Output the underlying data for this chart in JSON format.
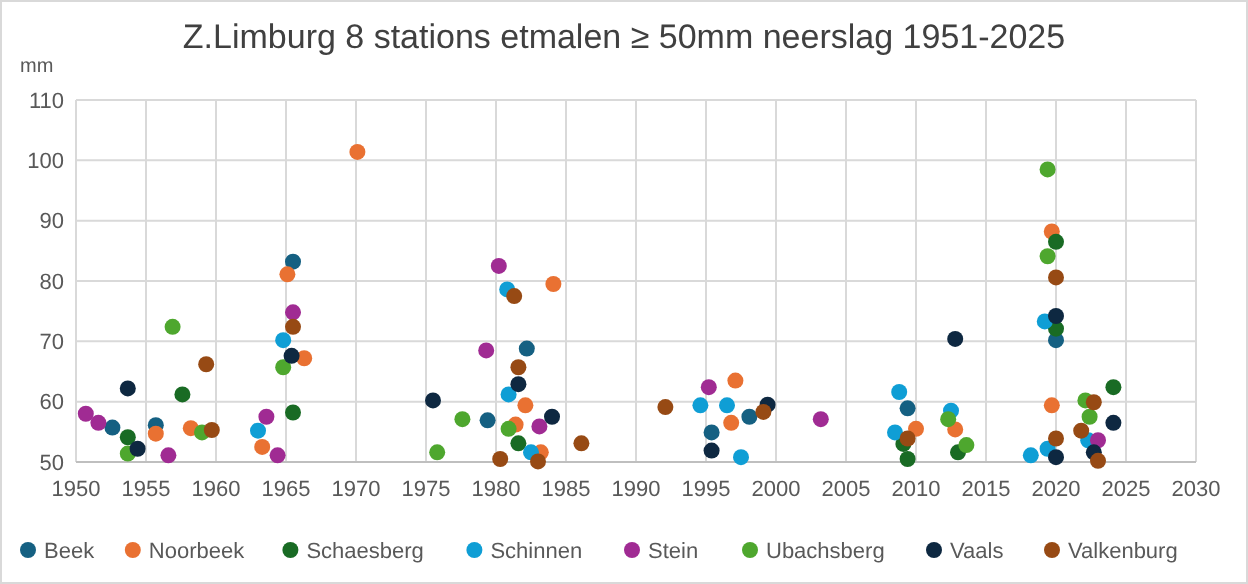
{
  "chart_data": {
    "type": "scatter",
    "title": "Z.Limburg 8 stations etmalen ≥ 50mm neerslag 1951-2025",
    "ylabel": "mm",
    "xlim": [
      1950,
      2030
    ],
    "xticks": [
      1950,
      1955,
      1960,
      1965,
      1970,
      1975,
      1980,
      1985,
      1990,
      1995,
      2000,
      2005,
      2010,
      2015,
      2020,
      2025,
      2030
    ],
    "ylim": [
      50,
      110
    ],
    "yticks": [
      50,
      60,
      70,
      80,
      90,
      100,
      110
    ],
    "grid": true,
    "legend": "bottom",
    "marker": "circle",
    "series": [
      {
        "name": "Beek",
        "color": "#156082",
        "x": [
          1952.6,
          1955.7,
          1965.5,
          1979.4,
          1982.2,
          1995.4,
          1998.1,
          2009.4,
          2020.0
        ],
        "values": [
          55.7,
          56.1,
          83.2,
          56.9,
          68.8,
          54.9,
          57.5,
          58.9,
          70.2
        ]
      },
      {
        "name": "Noorbeek",
        "color": "#e97132",
        "x": [
          1955.7,
          1958.2,
          1963.3,
          1965.1,
          1966.3,
          1970.1,
          1981.4,
          1982.1,
          1983.2,
          1984.1,
          1996.8,
          1997.1,
          2010.0,
          2012.8,
          2019.7,
          2019.7
        ],
        "values": [
          54.7,
          55.6,
          52.5,
          81.1,
          67.2,
          101.4,
          56.2,
          59.4,
          51.6,
          79.5,
          56.5,
          63.5,
          55.5,
          55.4,
          88.2,
          59.4
        ]
      },
      {
        "name": "Schaesberg",
        "color": "#196b24",
        "x": [
          1953.7,
          1957.6,
          1965.5,
          1981.6,
          2009.1,
          2009.4,
          2013.0,
          2020.0,
          2020.0,
          2024.1
        ],
        "values": [
          54.1,
          61.2,
          58.2,
          53.1,
          53.0,
          50.5,
          51.6,
          86.5,
          72.1,
          62.4
        ]
      },
      {
        "name": "Schinnen",
        "color": "#0f9ed5",
        "x": [
          1963.0,
          1964.8,
          1980.8,
          1980.9,
          1982.5,
          1994.6,
          1996.5,
          1997.5,
          2008.5,
          2008.8,
          2012.5,
          2018.2,
          2019.2,
          2019.4,
          2022.3
        ],
        "values": [
          55.2,
          70.2,
          78.6,
          61.2,
          51.6,
          59.4,
          59.4,
          50.8,
          54.9,
          61.6,
          58.5,
          51.1,
          73.3,
          52.2,
          53.6
        ]
      },
      {
        "name": "Stein",
        "color": "#a02b93",
        "x": [
          1950.7,
          1951.6,
          1956.6,
          1963.6,
          1964.4,
          1965.5,
          1979.3,
          1980.2,
          1983.1,
          1995.2,
          2003.2,
          2023.0
        ],
        "values": [
          58.0,
          56.5,
          51.1,
          57.5,
          51.1,
          74.8,
          68.5,
          82.5,
          55.9,
          62.4,
          57.1,
          53.6
        ]
      },
      {
        "name": "Ubachsberg",
        "color": "#4ea72e",
        "x": [
          1953.7,
          1956.9,
          1959.0,
          1964.8,
          1975.8,
          1977.6,
          1980.9,
          2012.3,
          2013.6,
          2019.4,
          2019.4,
          2022.1,
          2022.4
        ],
        "values": [
          51.4,
          72.4,
          54.9,
          65.7,
          51.6,
          57.1,
          55.5,
          57.1,
          52.8,
          98.5,
          84.1,
          60.2,
          57.5
        ]
      },
      {
        "name": "Vaals",
        "color": "#0e2841",
        "x": [
          1953.7,
          1954.4,
          1965.4,
          1975.5,
          1981.6,
          1984.0,
          1995.4,
          1999.4,
          2012.8,
          2020.0,
          2020.0,
          2022.7,
          2024.1
        ],
        "values": [
          62.2,
          52.2,
          67.6,
          60.2,
          62.9,
          57.5,
          51.9,
          59.5,
          70.4,
          74.2,
          50.8,
          51.6,
          56.5
        ]
      },
      {
        "name": "Valkenburg",
        "color": "#974a14",
        "x": [
          1959.3,
          1959.7,
          1965.5,
          1980.3,
          1981.3,
          1981.6,
          1983.0,
          1986.1,
          1992.1,
          1999.1,
          2009.4,
          2020.0,
          2020.0,
          2021.8,
          2022.7,
          2023.0
        ],
        "values": [
          66.2,
          55.3,
          72.4,
          50.5,
          77.5,
          65.7,
          50.1,
          53.1,
          59.1,
          58.3,
          53.9,
          80.6,
          53.9,
          55.2,
          59.9,
          50.2
        ]
      }
    ]
  }
}
